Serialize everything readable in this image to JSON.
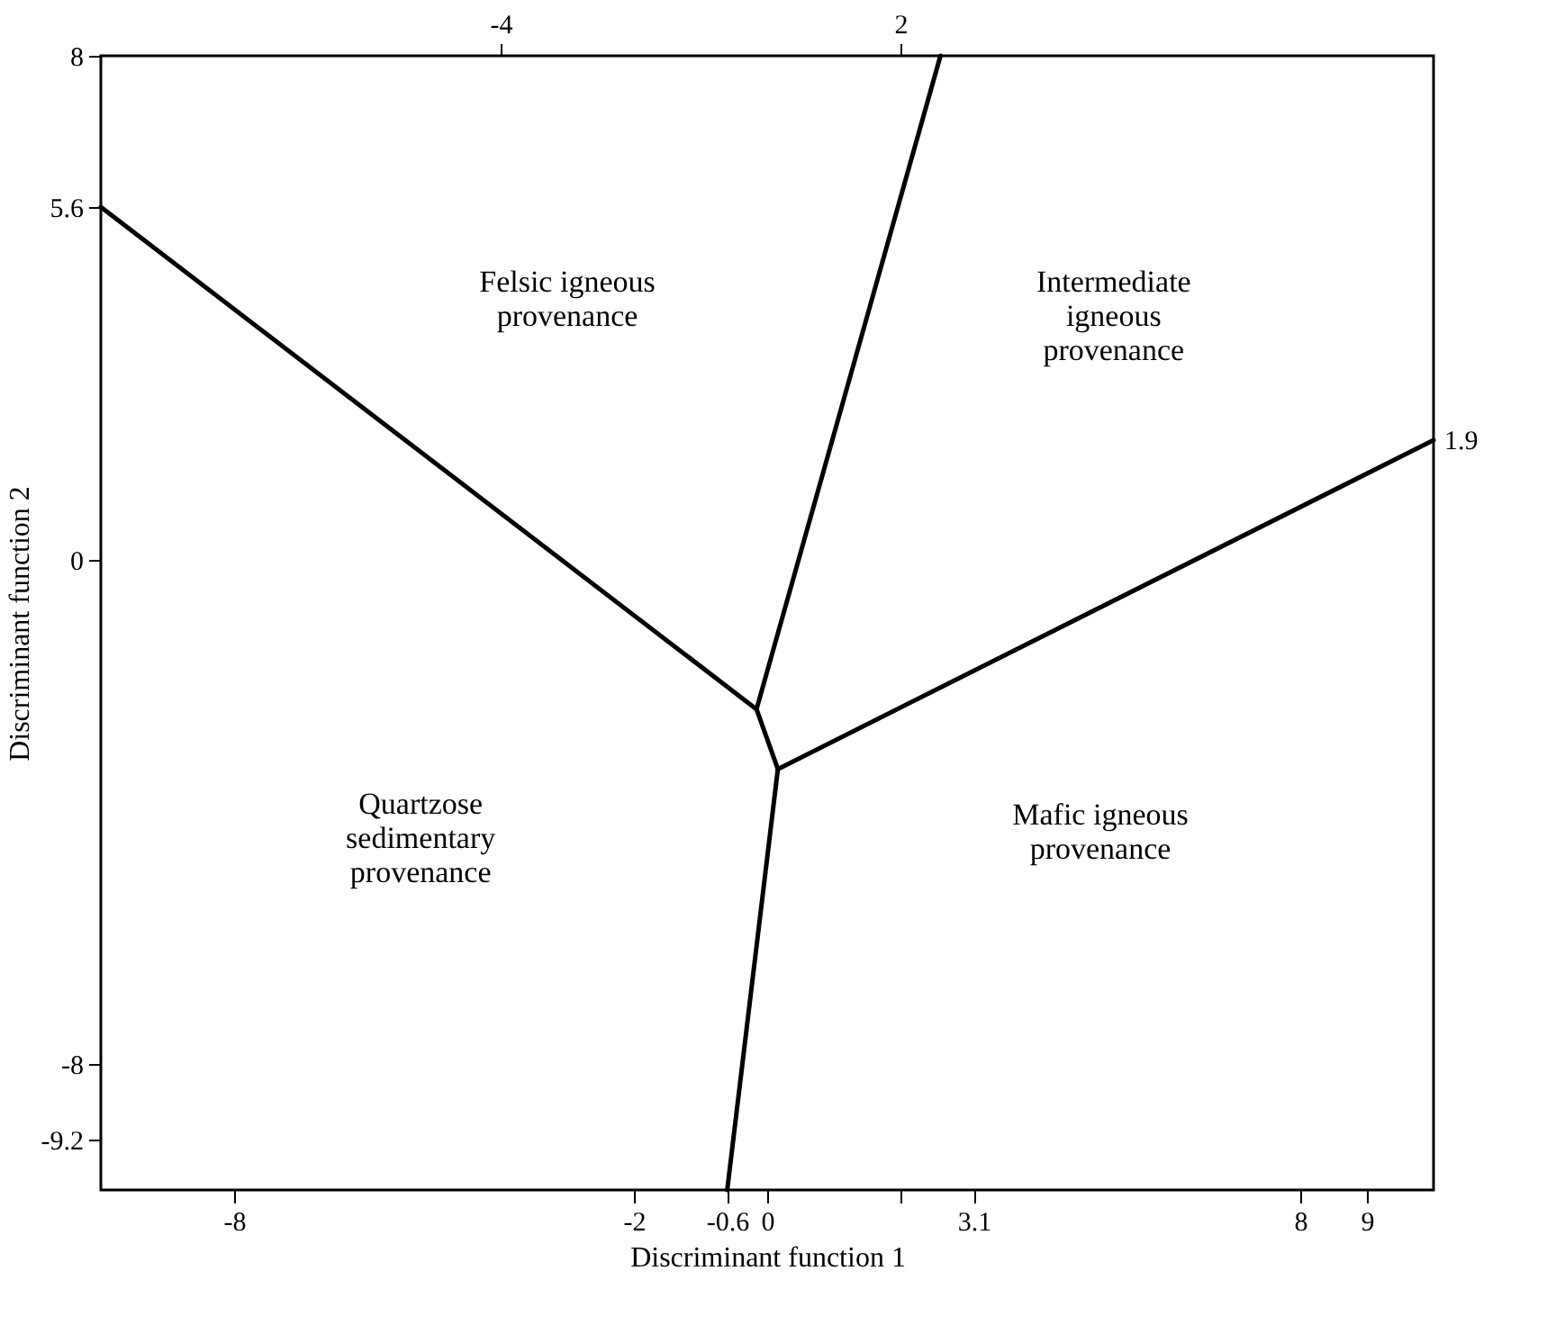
{
  "chart_data": {
    "type": "line",
    "xlabel": "Discriminant function 1",
    "ylabel": "Discriminant function 2",
    "xlim": [
      -10,
      10
    ],
    "ylim": [
      -10,
      8
    ],
    "x2lim": [
      -10,
      10
    ],
    "xticks": [
      -8,
      -2,
      -0.6,
      0,
      {
        "value": 2,
        "label": null
      },
      3.1,
      8,
      9
    ],
    "x2ticks": [
      -4,
      2
    ],
    "yticks": [
      -9.2,
      -8,
      0,
      5.6,
      8
    ],
    "grid": false,
    "marker": "none",
    "line_style": "solid",
    "series": [
      {
        "color": "#000000",
        "x": [
          -10,
          -0.16
        ],
        "values": [
          5.6,
          -2.37
        ]
      },
      {
        "color": "#000000",
        "x": [
          -0.16,
          2.6
        ],
        "values": [
          -2.37,
          8
        ]
      },
      {
        "color": "#000000",
        "x": [
          -0.16,
          0.16
        ],
        "values": [
          -2.37,
          -3.32
        ]
      },
      {
        "color": "#000000",
        "x": [
          0.16,
          10
        ],
        "values": [
          -3.32,
          1.9
        ]
      },
      {
        "color": "#000000",
        "x": [
          0.16,
          -0.6
        ],
        "values": [
          -3.32,
          -10
        ]
      }
    ],
    "annotations": [
      "Felsic igneous\nprovenance",
      "Intermediate\nigneous\nprovenance",
      "Quartzose\nsedimentary\nprovenance",
      "Mafic igneous\nprovenance",
      {
        "text": "1.9",
        "x": 10,
        "y": 1.9
      }
    ]
  }
}
